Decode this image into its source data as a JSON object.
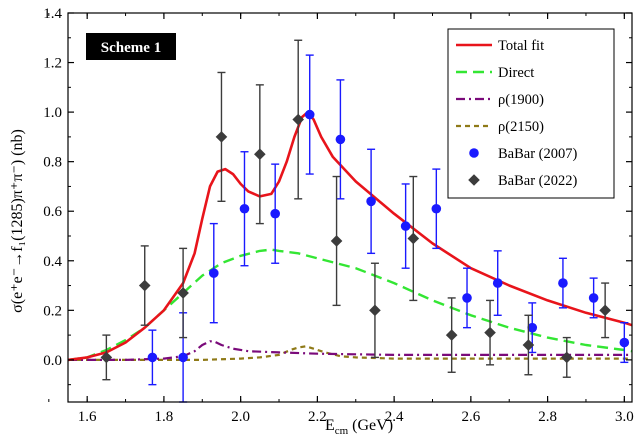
{
  "chart_data": {
    "type": "line",
    "scheme_label": "Scheme 1",
    "xlabel_main": "E",
    "xlabel_sub": "cm",
    "xlabel_unit": " (GeV)",
    "ylabel": "σ(e⁺e⁻→f₁(1285)π⁺π⁻) (nb)",
    "xlim": [
      1.55,
      3.02
    ],
    "ylim": [
      -0.17,
      1.4
    ],
    "x_ticks": [
      1.6,
      1.8,
      2.0,
      2.2,
      2.4,
      2.6,
      2.8,
      3.0
    ],
    "x_tick_labels": [
      "1.6",
      "1.8",
      "2.0",
      "2.2",
      "2.4",
      "2.6",
      "2.8",
      "3.0"
    ],
    "y_ticks": [
      0.0,
      0.2,
      0.4,
      0.6,
      0.8,
      1.0,
      1.2,
      1.4
    ],
    "y_tick_labels": [
      "0.0",
      "0.2",
      "0.4",
      "0.6",
      "0.8",
      "1.0",
      "1.2",
      "1.4"
    ],
    "legend_position": "top-right",
    "series": [
      {
        "name": "Total fit",
        "kind": "line",
        "color": "#e8141b",
        "dash": "solid",
        "x": [
          1.55,
          1.6,
          1.65,
          1.7,
          1.75,
          1.8,
          1.85,
          1.88,
          1.9,
          1.92,
          1.94,
          1.96,
          1.98,
          2.0,
          2.02,
          2.05,
          2.08,
          2.1,
          2.12,
          2.14,
          2.16,
          2.175,
          2.19,
          2.21,
          2.24,
          2.3,
          2.4,
          2.5,
          2.6,
          2.7,
          2.8,
          2.9,
          3.0,
          3.02
        ],
        "y": [
          0.0,
          0.01,
          0.03,
          0.07,
          0.13,
          0.2,
          0.31,
          0.43,
          0.57,
          0.7,
          0.76,
          0.77,
          0.75,
          0.71,
          0.68,
          0.66,
          0.67,
          0.72,
          0.8,
          0.9,
          0.98,
          1.0,
          0.97,
          0.9,
          0.82,
          0.72,
          0.59,
          0.47,
          0.37,
          0.3,
          0.24,
          0.19,
          0.15,
          0.14
        ]
      },
      {
        "name": "Direct",
        "kind": "line",
        "color": "#33e633",
        "dash": "dashed",
        "x": [
          1.55,
          1.6,
          1.65,
          1.7,
          1.75,
          1.8,
          1.85,
          1.9,
          1.95,
          2.0,
          2.05,
          2.08,
          2.1,
          2.15,
          2.2,
          2.3,
          2.4,
          2.5,
          2.6,
          2.7,
          2.8,
          2.9,
          3.0,
          3.02
        ],
        "y": [
          0.0,
          0.01,
          0.04,
          0.08,
          0.13,
          0.2,
          0.27,
          0.34,
          0.39,
          0.42,
          0.44,
          0.445,
          0.44,
          0.43,
          0.41,
          0.37,
          0.31,
          0.24,
          0.18,
          0.13,
          0.09,
          0.06,
          0.04,
          0.035
        ]
      },
      {
        "name": "ρ(1900)",
        "kind": "line",
        "color": "#7a0a7a",
        "dash": "dashdot",
        "x": [
          1.55,
          1.7,
          1.8,
          1.85,
          1.88,
          1.9,
          1.92,
          1.93,
          1.95,
          1.98,
          2.02,
          2.1,
          2.2,
          2.4,
          2.6,
          2.8,
          3.0,
          3.02
        ],
        "y": [
          0.0,
          0.0,
          0.005,
          0.015,
          0.035,
          0.06,
          0.075,
          0.075,
          0.06,
          0.045,
          0.035,
          0.03,
          0.025,
          0.02,
          0.02,
          0.02,
          0.02,
          0.02
        ]
      },
      {
        "name": "ρ(2150)",
        "kind": "line",
        "color": "#8f7a18",
        "dash": "shortdash",
        "x": [
          1.55,
          1.8,
          1.9,
          2.0,
          2.05,
          2.1,
          2.13,
          2.15,
          2.17,
          2.19,
          2.22,
          2.26,
          2.3,
          2.4,
          2.6,
          2.8,
          3.0,
          3.02
        ],
        "y": [
          0.0,
          0.0,
          0.0,
          0.005,
          0.01,
          0.02,
          0.04,
          0.05,
          0.055,
          0.045,
          0.03,
          0.015,
          0.01,
          0.005,
          0.005,
          0.005,
          0.005,
          0.005
        ]
      },
      {
        "name": "BaBar (2007)",
        "kind": "points",
        "marker": "circle",
        "color": "#1a1aff",
        "x": [
          1.77,
          1.85,
          1.93,
          2.01,
          2.09,
          2.18,
          2.26,
          2.34,
          2.43,
          2.51,
          2.59,
          2.67,
          2.76,
          2.84,
          2.92,
          3.0
        ],
        "y": [
          0.01,
          0.01,
          0.35,
          0.61,
          0.59,
          0.99,
          0.89,
          0.64,
          0.54,
          0.61,
          0.25,
          0.31,
          0.13,
          0.31,
          0.25,
          0.07
        ],
        "err": [
          0.11,
          0.18,
          0.2,
          0.23,
          0.2,
          0.24,
          0.24,
          0.21,
          0.17,
          0.16,
          0.12,
          0.13,
          0.1,
          0.1,
          0.08,
          0.08
        ]
      },
      {
        "name": "BaBar (2022)",
        "kind": "points",
        "marker": "diamond",
        "color": "#3c3c3c",
        "x": [
          1.65,
          1.75,
          1.85,
          1.95,
          2.05,
          2.15,
          2.25,
          2.35,
          2.45,
          2.55,
          2.65,
          2.75,
          2.85,
          2.95
        ],
        "y": [
          0.01,
          0.3,
          0.27,
          0.9,
          0.83,
          0.97,
          0.48,
          0.2,
          0.49,
          0.1,
          0.11,
          0.06,
          0.01,
          0.2
        ],
        "err": [
          0.09,
          0.16,
          0.18,
          0.26,
          0.28,
          0.32,
          0.26,
          0.19,
          0.25,
          0.15,
          0.13,
          0.12,
          0.08,
          0.11
        ]
      }
    ]
  }
}
